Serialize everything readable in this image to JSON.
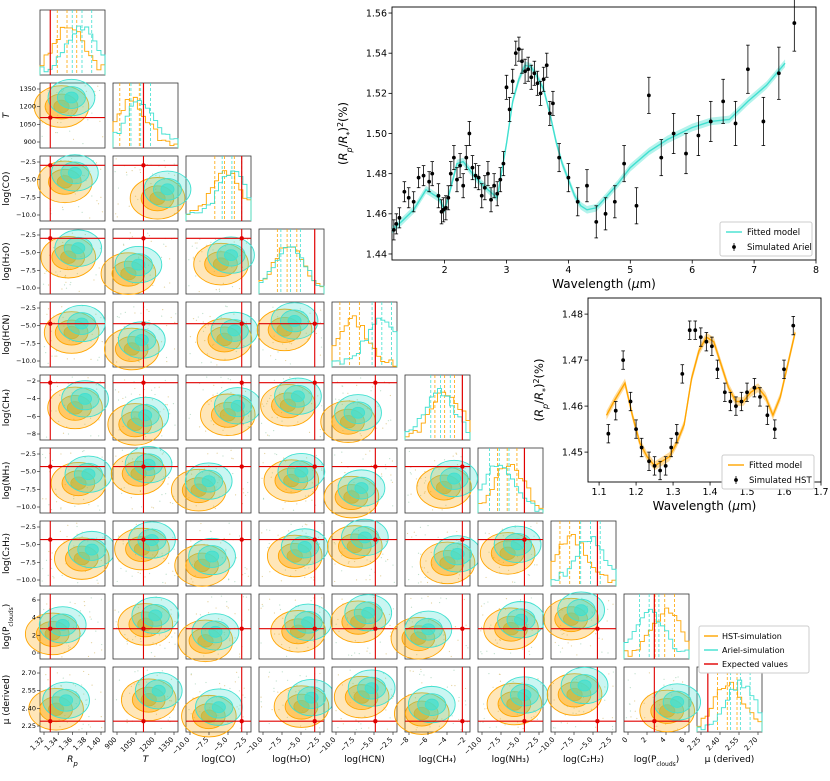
{
  "colors": {
    "hst": "#ffa500",
    "ariel": "#40e0d0",
    "expected": "#e00000",
    "points": "#000000"
  },
  "corner_plot": {
    "parameters": [
      {
        "label": "R_p",
        "ticks": [
          "1.32",
          "1.34",
          "1.36",
          "1.38",
          "1.40"
        ],
        "range": [
          1.31,
          1.405
        ],
        "expected": 1.325
      },
      {
        "label": "T",
        "ticks": [
          "900",
          "1050",
          "1200",
          "1350"
        ],
        "range": [
          780,
          1420
        ],
        "expected": 1080
      },
      {
        "label": "log(CO)",
        "ticks": [
          "−10.0",
          "−7.5",
          "−5.0",
          "−2.5"
        ],
        "range": [
          -12,
          -1.5
        ],
        "expected": -3.0
      },
      {
        "label": "log(H₂O)",
        "ticks": [
          "−10.0",
          "−7.5",
          "−5.0",
          "−2.5"
        ],
        "range": [
          -12,
          -1.5
        ],
        "expected": -3.0
      },
      {
        "label": "log(HCN)",
        "ticks": [
          "−10.0",
          "−7.5",
          "−5.0",
          "−2.5"
        ],
        "range": [
          -12,
          -1.5
        ],
        "expected": -5.0
      },
      {
        "label": "log(CH₄)",
        "ticks": [
          "−8",
          "−6",
          "−4",
          "−2"
        ],
        "range": [
          -9.5,
          -1
        ],
        "expected": -2.0
      },
      {
        "label": "log(NH₃)",
        "ticks": [
          "−10.0",
          "−7.5",
          "−5.0",
          "−2.5"
        ],
        "range": [
          -12,
          -1.5
        ],
        "expected": -4.5
      },
      {
        "label": "log(C₂H₂)",
        "ticks": [
          "−10.0",
          "−7.5",
          "−5.0",
          "−2.5"
        ],
        "range": [
          -12,
          -1.5
        ],
        "expected": -4.5
      },
      {
        "label": "log(P_clouds)",
        "ticks": [
          "0",
          "2",
          "4",
          "6"
        ],
        "range": [
          -1.5,
          6
        ],
        "expected": 2.0
      },
      {
        "label": "μ (derived)",
        "ticks": [
          "2.25",
          "2.40",
          "2.55",
          "2.70"
        ],
        "range": [
          2.2,
          2.8
        ],
        "expected": 2.3
      }
    ],
    "y_tick_labels": {
      "T": [
        "1350",
        "1200",
        "1050",
        "900"
      ],
      "log(CO)": [
        "−2.5",
        "−5.0",
        "−7.5",
        "−10.0"
      ],
      "log(H₂O)": [
        "−2.5",
        "−5.0",
        "−7.5",
        "−10.0"
      ],
      "log(HCN)": [
        "−2.5",
        "−5.0",
        "−7.5",
        "−10.0"
      ],
      "log(CH₄)": [
        "−2",
        "−4",
        "−6",
        "−8"
      ],
      "log(NH₃)": [
        "−2.5",
        "−5.0",
        "−7.5",
        "−10.0"
      ],
      "log(C₂H₂)": [
        "−2.5",
        "−5.0",
        "−7.5",
        "−10.0"
      ],
      "log(P_clouds)": [
        "6",
        "4",
        "2",
        "0"
      ],
      "μ (derived)": [
        "2.70",
        "2.55",
        "2.40",
        "2.25"
      ]
    },
    "legend": [
      "HST-simulation",
      "Ariel-simulation",
      "Expected values"
    ]
  },
  "chart_data": [
    {
      "type": "line",
      "title": "",
      "xlabel": "Wavelength (μm)",
      "ylabel": "(R_p/R_*)²(%)",
      "xlim": [
        1.15,
        8.0
      ],
      "ylim": [
        1.437,
        1.563
      ],
      "xticks": [
        "2",
        "3",
        "4",
        "5",
        "6",
        "7",
        "8"
      ],
      "yticks": [
        "1.44",
        "1.46",
        "1.48",
        "1.50",
        "1.52",
        "1.54",
        "1.56"
      ],
      "legend": [
        "Fitted model",
        "Simulated Ariel"
      ],
      "model_x": [
        1.15,
        1.3,
        1.5,
        1.7,
        1.9,
        2.0,
        2.1,
        2.2,
        2.3,
        2.5,
        2.7,
        2.85,
        3.0,
        3.1,
        3.2,
        3.3,
        3.4,
        3.5,
        3.6,
        3.7,
        3.8,
        3.9,
        4.0,
        4.1,
        4.2,
        4.3,
        4.45,
        4.6,
        4.8,
        5.0,
        5.3,
        5.6,
        6.0,
        6.3,
        6.6,
        6.9,
        7.2,
        7.5
      ],
      "model_y": [
        1.452,
        1.456,
        1.462,
        1.472,
        1.468,
        1.462,
        1.473,
        1.485,
        1.486,
        1.478,
        1.472,
        1.468,
        1.495,
        1.516,
        1.527,
        1.534,
        1.533,
        1.528,
        1.522,
        1.51,
        1.496,
        1.485,
        1.477,
        1.469,
        1.464,
        1.462,
        1.463,
        1.468,
        1.475,
        1.483,
        1.491,
        1.497,
        1.503,
        1.506,
        1.507,
        1.516,
        1.524,
        1.535
      ],
      "x": [
        1.18,
        1.22,
        1.27,
        1.35,
        1.42,
        1.5,
        1.58,
        1.66,
        1.75,
        1.8,
        1.9,
        1.95,
        1.98,
        2.02,
        2.06,
        2.1,
        2.15,
        2.2,
        2.25,
        2.3,
        2.35,
        2.4,
        2.45,
        2.5,
        2.55,
        2.6,
        2.65,
        2.7,
        2.75,
        2.8,
        2.85,
        2.9,
        2.95,
        3.0,
        3.05,
        3.1,
        3.15,
        3.2,
        3.25,
        3.3,
        3.35,
        3.4,
        3.45,
        3.5,
        3.55,
        3.6,
        3.65,
        3.7,
        3.75,
        3.85,
        4.0,
        4.15,
        4.3,
        4.45,
        4.6,
        4.75,
        4.9,
        5.1,
        5.3,
        5.5,
        5.7,
        5.9,
        6.1,
        6.3,
        6.5,
        6.7,
        6.9,
        7.15,
        7.4,
        7.65
      ],
      "y": [
        1.452,
        1.455,
        1.458,
        1.471,
        1.468,
        1.466,
        1.478,
        1.479,
        1.476,
        1.48,
        1.469,
        1.461,
        1.462,
        1.463,
        1.468,
        1.48,
        1.488,
        1.477,
        1.484,
        1.474,
        1.488,
        1.5,
        1.483,
        1.479,
        1.478,
        1.469,
        1.473,
        1.48,
        1.467,
        1.474,
        1.47,
        1.477,
        1.485,
        1.523,
        1.512,
        1.526,
        1.54,
        1.542,
        1.536,
        1.531,
        1.532,
        1.528,
        1.53,
        1.525,
        1.52,
        1.527,
        1.534,
        1.51,
        1.515,
        1.488,
        1.478,
        1.466,
        1.474,
        1.456,
        1.46,
        1.466,
        1.485,
        1.464,
        1.519,
        1.488,
        1.5,
        1.49,
        1.499,
        1.506,
        1.516,
        1.505,
        1.532,
        1.506,
        1.53,
        1.555
      ],
      "err": [
        0.005,
        0.005,
        0.005,
        0.005,
        0.005,
        0.005,
        0.005,
        0.005,
        0.005,
        0.006,
        0.006,
        0.006,
        0.006,
        0.006,
        0.006,
        0.006,
        0.006,
        0.006,
        0.006,
        0.006,
        0.006,
        0.006,
        0.006,
        0.006,
        0.006,
        0.006,
        0.006,
        0.006,
        0.006,
        0.006,
        0.006,
        0.006,
        0.006,
        0.006,
        0.006,
        0.006,
        0.006,
        0.006,
        0.006,
        0.006,
        0.006,
        0.006,
        0.006,
        0.006,
        0.006,
        0.006,
        0.006,
        0.006,
        0.006,
        0.007,
        0.007,
        0.007,
        0.008,
        0.008,
        0.008,
        0.008,
        0.009,
        0.009,
        0.009,
        0.009,
        0.01,
        0.01,
        0.01,
        0.01,
        0.011,
        0.011,
        0.012,
        0.012,
        0.013,
        0.014
      ]
    },
    {
      "type": "line",
      "title": "",
      "xlabel": "Wavelength (μm)",
      "ylabel": "(R_p/R_*)²(%)",
      "xlim": [
        1.07,
        1.7
      ],
      "ylim": [
        1.4435,
        1.4835
      ],
      "xticks": [
        "1.1",
        "1.2",
        "1.3",
        "1.4",
        "1.5",
        "1.6",
        "1.7"
      ],
      "yticks": [
        "1.45",
        "1.46",
        "1.47",
        "1.48"
      ],
      "legend": [
        "Fitted model",
        "Simulated HST"
      ],
      "model_x": [
        1.12,
        1.14,
        1.17,
        1.19,
        1.21,
        1.23,
        1.25,
        1.27,
        1.29,
        1.31,
        1.33,
        1.35,
        1.37,
        1.39,
        1.41,
        1.43,
        1.45,
        1.47,
        1.49,
        1.51,
        1.53,
        1.55,
        1.57,
        1.59,
        1.61,
        1.63
      ],
      "model_y": [
        1.458,
        1.461,
        1.465,
        1.458,
        1.452,
        1.449,
        1.447,
        1.448,
        1.449,
        1.452,
        1.456,
        1.466,
        1.472,
        1.475,
        1.474,
        1.469,
        1.464,
        1.461,
        1.461,
        1.463,
        1.464,
        1.462,
        1.458,
        1.462,
        1.469,
        1.476
      ],
      "x": [
        1.125,
        1.145,
        1.165,
        1.185,
        1.2,
        1.215,
        1.235,
        1.25,
        1.265,
        1.28,
        1.295,
        1.31,
        1.325,
        1.345,
        1.36,
        1.375,
        1.39,
        1.405,
        1.42,
        1.44,
        1.455,
        1.47,
        1.485,
        1.5,
        1.52,
        1.535,
        1.555,
        1.575,
        1.6,
        1.625
      ],
      "y": [
        1.454,
        1.459,
        1.47,
        1.461,
        1.455,
        1.451,
        1.448,
        1.447,
        1.446,
        1.447,
        1.451,
        1.454,
        1.467,
        1.4765,
        1.4765,
        1.475,
        1.474,
        1.473,
        1.468,
        1.463,
        1.461,
        1.46,
        1.461,
        1.463,
        1.464,
        1.462,
        1.458,
        1.455,
        1.468,
        1.4775
      ]
    }
  ],
  "spectrum_legends": {
    "ariel": [
      "Fitted model",
      "Simulated Ariel"
    ],
    "hst": [
      "Fitted model",
      "Simulated HST"
    ]
  }
}
